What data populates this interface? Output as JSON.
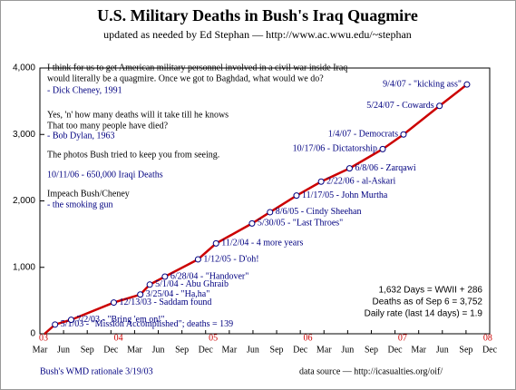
{
  "chart_data": {
    "type": "line",
    "title": "U.S. Military Deaths in Bush's Iraq Quagmire",
    "subtitle": "updated as needed by Ed Stephan — http://www.ac.wwu.edu/~stephan",
    "xlim": [
      2003.17,
      2007.92
    ],
    "ylim": [
      0,
      4000
    ],
    "yticks": [
      0,
      {
        "value": 1000,
        "label": "1,000"
      },
      {
        "value": 2000,
        "label": "2,000"
      },
      {
        "value": 3000,
        "label": "3,000"
      },
      {
        "value": 4000,
        "label": "4,000"
      }
    ],
    "xticks": [
      {
        "value": 2003.17,
        "label": "Mar"
      },
      {
        "value": 2003.42,
        "label": "Jun"
      },
      {
        "value": 2003.67,
        "label": "Sep"
      },
      {
        "value": 2003.92,
        "label": "Dec"
      },
      {
        "value": 2004.17,
        "label": "Mar"
      },
      {
        "value": 2004.42,
        "label": "Jun"
      },
      {
        "value": 2004.67,
        "label": "Sep"
      },
      {
        "value": 2004.92,
        "label": "Dec"
      },
      {
        "value": 2005.17,
        "label": "Mar"
      },
      {
        "value": 2005.42,
        "label": "Jun"
      },
      {
        "value": 2005.67,
        "label": "Sep"
      },
      {
        "value": 2005.92,
        "label": "Dec"
      },
      {
        "value": 2006.17,
        "label": "Mar"
      },
      {
        "value": 2006.42,
        "label": "Jun"
      },
      {
        "value": 2006.67,
        "label": "Sep"
      },
      {
        "value": 2006.92,
        "label": "Dec"
      },
      {
        "value": 2007.17,
        "label": "Mar"
      },
      {
        "value": 2007.42,
        "label": "Jun"
      },
      {
        "value": 2007.67,
        "label": "Sep"
      },
      {
        "value": 2007.92,
        "label": "Dec"
      }
    ],
    "year_ticks": [
      {
        "value": 2003.17,
        "label": "03"
      },
      {
        "value": 2004,
        "label": "04"
      },
      {
        "value": 2005,
        "label": "05"
      },
      {
        "value": 2006,
        "label": "06"
      },
      {
        "value": 2007,
        "label": "07"
      },
      {
        "value": 2007.9,
        "label": "08"
      }
    ],
    "series": [
      {
        "color": "#cc0000",
        "x": [
          2003.22,
          2003.33,
          2003.5,
          2003.95,
          2004.23,
          2004.33,
          2004.49,
          2004.84,
          2005.03,
          2005.41,
          2005.6,
          2005.88,
          2006.14,
          2006.44,
          2006.79,
          2007.01,
          2007.39,
          2007.68
        ],
        "values": [
          0,
          139,
          210,
          470,
          590,
          740,
          860,
          1120,
          1360,
          1660,
          1830,
          2080,
          2290,
          2490,
          2780,
          3000,
          3430,
          3752
        ]
      }
    ],
    "annotations": [
      {
        "x": 2003.33,
        "value": 139,
        "label": "5/1/03 - \"Mission Accomplished\";  deaths = 139"
      },
      {
        "x": 2003.5,
        "value": 210,
        "label": "7/2/03 - \"Bring 'em on!\""
      },
      {
        "x": 2003.95,
        "value": 470,
        "label": "12/13/03 - Saddam found"
      },
      {
        "x": 2004.23,
        "value": 590,
        "label": "3/25/04 - \"Ha,ha\""
      },
      {
        "x": 2004.33,
        "value": 740,
        "label": "5/1/04 - Abu Ghraib"
      },
      {
        "x": 2004.49,
        "value": 860,
        "label": "6/28/04 - \"Handover\""
      },
      {
        "x": 2004.84,
        "value": 1120,
        "label": "1/12/05 - D'oh!"
      },
      {
        "x": 2005.03,
        "value": 1360,
        "label": "11/2/04 - 4 more years"
      },
      {
        "x": 2005.41,
        "value": 1660,
        "label": "5/30/05 - \"Last Throes\""
      },
      {
        "x": 2005.6,
        "value": 1830,
        "label": "8/6/05 - Cindy Sheehan"
      },
      {
        "x": 2005.88,
        "value": 2080,
        "label": "11/17/05 - John Murtha"
      },
      {
        "x": 2006.14,
        "value": 2290,
        "label": "2/22/06 - al-Askari"
      },
      {
        "x": 2006.44,
        "value": 2490,
        "label": "6/8/06 - Zarqawi"
      },
      {
        "x": 2006.79,
        "value": 2780,
        "label": "10/17/06 - Dictatorship"
      },
      {
        "x": 2007.01,
        "value": 3000,
        "label": "1/4/07 - Democrats"
      },
      {
        "x": 2007.39,
        "value": 3430,
        "label": "5/24/07 - Cowards"
      },
      {
        "x": 2007.68,
        "value": 3752,
        "label": "9/4/07 - \"kicking ass\""
      }
    ],
    "notes": [
      {
        "text": "I think for us to get American military personnel involved in a civil war inside Iraq",
        "color": "#000000"
      },
      {
        "text": "would literally be a quagmire.  Once we got to Baghdad, what would we do?",
        "color": "#000000"
      },
      {
        "text": "- Dick Cheney, 1991",
        "color": "#000080"
      },
      {
        "text": "Yes, 'n' how many deaths will it take till he knows",
        "color": "#000000"
      },
      {
        "text": "That too many people have died?",
        "color": "#000000"
      },
      {
        "text": "- Bob Dylan, 1963",
        "color": "#000080"
      },
      {
        "text": "The photos Bush tried to keep you from seeing.",
        "color": "#000000"
      },
      {
        "text": "10/11/06 - 650,000 Iraqi Deaths",
        "color": "#000080"
      },
      {
        "text": "Impeach Bush/Cheney",
        "color": "#000000"
      },
      {
        "text": "-  the smoking gun",
        "color": "#000080"
      }
    ],
    "stats": [
      "1,632 Days = WWII + 286",
      "Deaths as of Sep 6 = 3,752",
      "Daily rate (last 14 days) = 1.9"
    ],
    "footer_left": "Bush's WMD rationale 3/19/03",
    "footer_right": "data source  —  http://icasualties.org/oif/",
    "annotation_color": "#000080",
    "marker_color": "#ffffff"
  }
}
